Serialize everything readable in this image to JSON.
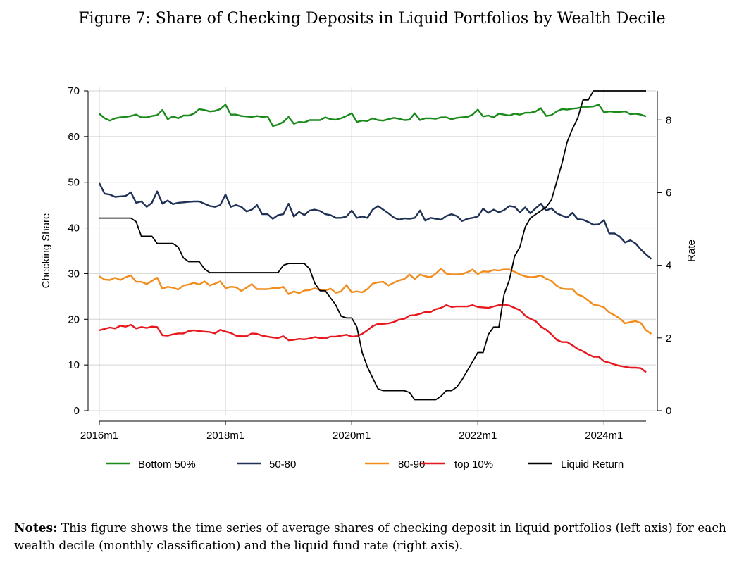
{
  "figure_title": "Figure 7: Share of Checking Deposits in Liquid Portfolios by Wealth Decile",
  "notes_label": "Notes:",
  "notes_text": "This figure shows the time series of average shares of checking deposit in liquid portfolios (left axis) for each wealth decile (monthly classification) and the liquid fund rate (right axis).",
  "chart_data": {
    "type": "line",
    "title": "Figure 7: Share of Checking Deposits in Liquid Portfolios by Wealth Decile",
    "xlabel": "",
    "ylabel": "Checking Share",
    "y2label": "Rate",
    "ylim": [
      0,
      70
    ],
    "y2lim": [
      0,
      8.8
    ],
    "yticks": [
      0,
      10,
      20,
      30,
      40,
      50,
      60,
      70
    ],
    "y2ticks": [
      0,
      2,
      4,
      6,
      8
    ],
    "x_start": "2016m1",
    "n_months": 105,
    "xticks": [
      {
        "index": 0,
        "label": "2016m1"
      },
      {
        "index": 24,
        "label": "2018m1"
      },
      {
        "index": 48,
        "label": "2020m1"
      },
      {
        "index": 72,
        "label": "2022m1"
      },
      {
        "index": 96,
        "label": "2024m1"
      }
    ],
    "grid": true,
    "legend_position": "bottom",
    "colors": {
      "bottom50": "#1a8a1a",
      "p50_80": "#1f3256",
      "p80_90": "#f28c1c",
      "top10": "#e8171e",
      "liquid_return": "#000000"
    },
    "series": [
      {
        "name": "Bottom 50%",
        "color": "#1a8a1a",
        "axis": "left",
        "values": [
          65,
          64,
          63.5,
          64,
          64.2,
          64.3,
          64.5,
          64.8,
          64.2,
          64.2,
          64.5,
          64.7,
          65.8,
          63.8,
          64.4,
          64,
          64.6,
          64.6,
          65,
          66,
          65.8,
          65.5,
          65.6,
          66,
          67,
          64.8,
          64.8,
          64.5,
          64.4,
          64.3,
          64.5,
          64.3,
          64.4,
          62.3,
          62.6,
          63.2,
          64.3,
          62.8,
          63.2,
          63.1,
          63.6,
          63.6,
          63.6,
          64.2,
          63.8,
          63.7,
          64,
          64.5,
          65.1,
          63.2,
          63.5,
          63.4,
          64,
          63.6,
          63.5,
          63.8,
          64.1,
          63.9,
          63.6,
          63.7,
          65.1,
          63.6,
          64,
          64,
          63.9,
          64.2,
          64.2,
          63.8,
          64.1,
          64.2,
          64.3,
          64.8,
          65.9,
          64.4,
          64.6,
          64.2,
          65,
          64.8,
          64.6,
          65,
          64.8,
          65.2,
          65.2,
          65.5,
          66.2,
          64.5,
          64.7,
          65.5,
          66,
          65.9,
          66.1,
          66.2,
          66.5,
          66.5,
          66.6,
          67,
          65.3,
          65.5,
          65.4,
          65.4,
          65.5,
          64.9,
          65,
          64.8,
          64.4
        ]
      },
      {
        "name": "50-80",
        "color": "#1f3256",
        "axis": "left",
        "values": [
          49.8,
          47.5,
          47.3,
          46.8,
          46.9,
          47,
          47.8,
          45.5,
          45.8,
          44.6,
          45.5,
          48,
          45.3,
          46,
          45.2,
          45.5,
          45.6,
          45.7,
          45.8,
          45.8,
          45.3,
          44.8,
          44.6,
          45,
          47.3,
          44.6,
          45,
          44.6,
          43.6,
          44,
          45,
          43,
          43,
          42,
          42.8,
          43,
          45.3,
          42.5,
          43.5,
          42.8,
          43.8,
          44,
          43.7,
          43,
          42.8,
          42.2,
          42.2,
          42.5,
          43.8,
          42.2,
          42.5,
          42.2,
          44,
          44.8,
          44,
          43.2,
          42.3,
          41.8,
          42.1,
          42,
          42.2,
          43.8,
          41.6,
          42.2,
          42,
          41.8,
          42.6,
          43,
          42.6,
          41.5,
          42,
          42.2,
          42.5,
          44.2,
          43.3,
          44,
          43.4,
          43.9,
          44.8,
          44.6,
          43.4,
          44.5,
          43.2,
          44.3,
          45.3,
          43.8,
          44.3,
          43.2,
          42.7,
          42.3,
          43.3,
          41.9,
          41.8,
          41.3,
          40.7,
          40.8,
          41.7,
          38.8,
          38.8,
          38.1,
          36.8,
          37.3,
          36.6,
          35.3,
          34.2,
          33.2
        ]
      },
      {
        "name": "80-90",
        "color": "#f28c1c",
        "axis": "left",
        "values": [
          29.4,
          28.7,
          28.6,
          29.1,
          28.6,
          29.2,
          29.6,
          28.2,
          28.2,
          27.7,
          28.4,
          29.1,
          26.7,
          27.1,
          26.9,
          26.5,
          27.4,
          27.6,
          28,
          27.6,
          28.3,
          27.4,
          27.8,
          28.3,
          26.8,
          27.1,
          27,
          26.2,
          26.9,
          27.7,
          26.6,
          26.6,
          26.6,
          26.8,
          26.8,
          27.1,
          25.5,
          26.1,
          25.7,
          26.3,
          26.4,
          26.8,
          26.4,
          26.3,
          26.7,
          25.8,
          26.1,
          27.5,
          25.9,
          26.1,
          25.9,
          26.6,
          27.8,
          28.1,
          28.2,
          27.4,
          28,
          28.5,
          28.8,
          29.8,
          28.8,
          29.8,
          29.4,
          29.2,
          30,
          31.1,
          30,
          29.8,
          29.8,
          29.9,
          30.3,
          30.9,
          29.9,
          30.5,
          30.4,
          30.8,
          30.7,
          30.9,
          30.9,
          30.4,
          29.8,
          29.4,
          29.2,
          29.3,
          29.6,
          28.9,
          28.4,
          27.3,
          26.7,
          26.6,
          26.6,
          25.4,
          25,
          24.1,
          23.2,
          23,
          22.6,
          21.5,
          20.9,
          20.2,
          19.1,
          19.4,
          19.6,
          19.2,
          17.6,
          16.8
        ]
      },
      {
        "name": "top 10%",
        "color": "#e8171e",
        "axis": "left",
        "values": [
          17.6,
          17.9,
          18.2,
          18,
          18.6,
          18.4,
          18.8,
          18,
          18.3,
          18.1,
          18.4,
          18.3,
          16.5,
          16.4,
          16.7,
          16.9,
          16.9,
          17.4,
          17.6,
          17.4,
          17.3,
          17.2,
          16.9,
          17.7,
          17.3,
          17,
          16.4,
          16.3,
          16.3,
          16.9,
          16.8,
          16.4,
          16.2,
          16,
          15.9,
          16.3,
          15.4,
          15.5,
          15.7,
          15.6,
          15.8,
          16.1,
          15.9,
          15.8,
          16.2,
          16.2,
          16.4,
          16.6,
          16.2,
          16.3,
          16.8,
          17.6,
          18.5,
          19,
          19,
          19.1,
          19.4,
          19.9,
          20.1,
          20.8,
          20.9,
          21.2,
          21.6,
          21.6,
          22.2,
          22.5,
          23.1,
          22.7,
          22.8,
          22.8,
          22.8,
          23.1,
          22.7,
          22.6,
          22.5,
          22.8,
          23.1,
          23.2,
          23,
          22.5,
          22,
          20.8,
          20.1,
          19.6,
          18.4,
          17.7,
          16.7,
          15.5,
          15,
          15,
          14.3,
          13.5,
          13,
          12.3,
          11.8,
          11.8,
          10.8,
          10.5,
          10.1,
          9.8,
          9.6,
          9.4,
          9.4,
          9.3,
          8.4
        ]
      },
      {
        "name": "Liquid Return",
        "color": "#000000",
        "axis": "right",
        "values": [
          5.3,
          5.3,
          5.3,
          5.3,
          5.3,
          5.3,
          5.3,
          5.2,
          4.8,
          4.8,
          4.8,
          4.6,
          4.6,
          4.6,
          4.6,
          4.5,
          4.2,
          4.1,
          4.1,
          4.1,
          3.9,
          3.8,
          3.8,
          3.8,
          3.8,
          3.8,
          3.8,
          3.8,
          3.8,
          3.8,
          3.8,
          3.8,
          3.8,
          3.8,
          3.8,
          4,
          4.05,
          4.05,
          4.05,
          4.05,
          3.9,
          3.5,
          3.3,
          3.3,
          3.1,
          2.9,
          2.6,
          2.55,
          2.55,
          2.3,
          1.6,
          1.2,
          0.9,
          0.6,
          0.55,
          0.55,
          0.55,
          0.55,
          0.55,
          0.5,
          0.3,
          0.3,
          0.3,
          0.3,
          0.3,
          0.4,
          0.55,
          0.55,
          0.65,
          0.85,
          1.1,
          1.35,
          1.6,
          1.6,
          2.1,
          2.3,
          2.3,
          3.2,
          3.6,
          4.25,
          4.5,
          5.05,
          5.3,
          5.4,
          5.5,
          5.6,
          5.8,
          6.3,
          6.8,
          7.4,
          7.75,
          8.05,
          8.55,
          8.55,
          8.8,
          8.8,
          8.8,
          8.8,
          8.8,
          8.8,
          8.8,
          8.8,
          8.8,
          8.8,
          8.8
        ]
      }
    ]
  }
}
